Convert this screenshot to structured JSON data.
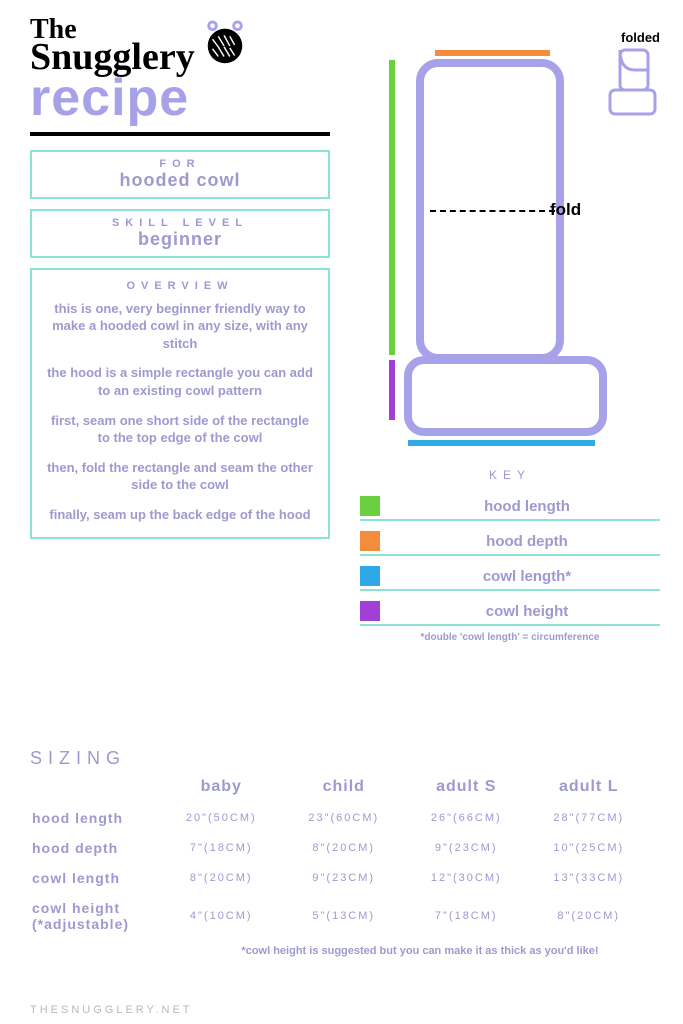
{
  "brand": {
    "the": "The",
    "name": "Snugglery"
  },
  "title": "recipe",
  "for": {
    "label": "FOR",
    "value": "hooded cowl"
  },
  "skill": {
    "label": "SKILL LEVEL",
    "value": "beginner"
  },
  "overview": {
    "label": "OVERVIEW",
    "paragraphs": [
      "this is one, very beginner friendly way to make a hooded cowl in any size, with any stitch",
      "the hood is a simple rectangle you can add to an existing cowl pattern",
      "first, seam one short side of the rectangle to the top edge of the cowl",
      "then, fold the rectangle and seam the other side to the cowl",
      "finally, seam up the back edge of the hood"
    ]
  },
  "diagram": {
    "folded_label": "folded",
    "fold_label": "fold",
    "key_title": "KEY",
    "key_note": "*double 'cowl length' = circumference",
    "colors": {
      "hood_length": "#6bcf3f",
      "hood_depth": "#f58b3c",
      "cowl_length": "#2ea8e6",
      "cowl_height": "#a23fd6",
      "outline": "#a6a1e8"
    },
    "key": [
      {
        "label": "hood length",
        "color": "#6bcf3f"
      },
      {
        "label": "hood depth",
        "color": "#f58b3c"
      },
      {
        "label": "cowl length*",
        "color": "#2ea8e6"
      },
      {
        "label": "cowl height",
        "color": "#a23fd6"
      }
    ]
  },
  "sizing": {
    "title": "SIZING",
    "columns": [
      "baby",
      "child",
      "adult S",
      "adult L"
    ],
    "rows": [
      {
        "label": "hood length",
        "cells": [
          "20\"(50CM)",
          "23\"(60CM)",
          "26\"(66CM)",
          "28\"(77CM)"
        ]
      },
      {
        "label": "hood depth",
        "cells": [
          "7\"(18CM)",
          "8\"(20CM)",
          "9\"(23CM)",
          "10\"(25CM)"
        ]
      },
      {
        "label": "cowl length",
        "cells": [
          "8\"(20CM)",
          "9\"(23CM)",
          "12\"(30CM)",
          "13\"(33CM)"
        ]
      },
      {
        "label": "cowl height (*adjustable)",
        "cells": [
          "4\"(10CM)",
          "5\"(13CM)",
          "7\"(18CM)",
          "8\"(20CM)"
        ]
      }
    ],
    "note": "*cowl height is suggested but you can make it as thick as you'd like!"
  },
  "footer": "THESNUGGLERY.NET"
}
